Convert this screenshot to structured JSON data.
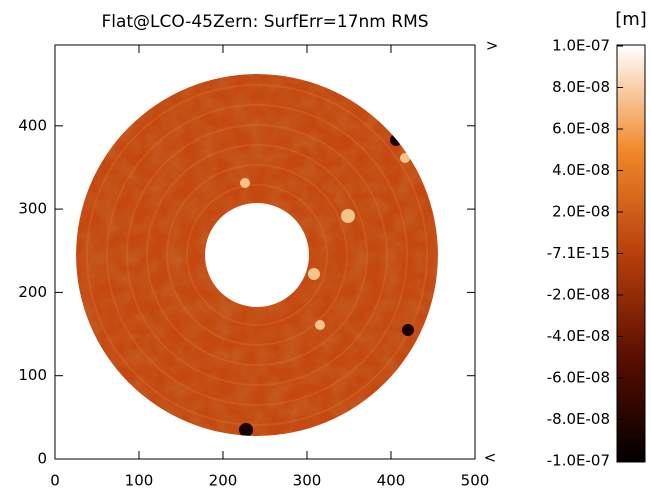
{
  "chart_data": {
    "type": "image",
    "title": "Flat@LCO-45Zern: SurfErr=17nm RMS",
    "xlim": [
      0,
      500
    ],
    "xticks": [
      0,
      100,
      200,
      300,
      400,
      500
    ],
    "ylim": [
      0,
      497
    ],
    "yticks": [
      0,
      100,
      200,
      300,
      400
    ],
    "colorbar": {
      "label": "[m]",
      "lim": [
        -1e-07,
        1e-07
      ],
      "over_mark": ">",
      "under_mark": "<",
      "colors": [
        "#000000",
        "#5a0e00",
        "#b8400c",
        "#f08a2c",
        "#ffffff"
      ],
      "ticks": [
        {
          "value": 1e-07,
          "label": "1.0E-07"
        },
        {
          "value": 8e-08,
          "label": "8.0E-08"
        },
        {
          "value": 6e-08,
          "label": "6.0E-08"
        },
        {
          "value": 4e-08,
          "label": "4.0E-08"
        },
        {
          "value": 2e-08,
          "label": "2.0E-08"
        },
        {
          "value": -7.1e-15,
          "label": "-7.1E-15"
        },
        {
          "value": -2e-08,
          "label": "-2.0E-08"
        },
        {
          "value": -4e-08,
          "label": "-4.0E-08"
        },
        {
          "value": -6e-08,
          "label": "-6.0E-08"
        },
        {
          "value": -8e-08,
          "label": "-8.0E-08"
        },
        {
          "value": -1e-07,
          "label": "-1.0E-07"
        }
      ]
    }
  }
}
